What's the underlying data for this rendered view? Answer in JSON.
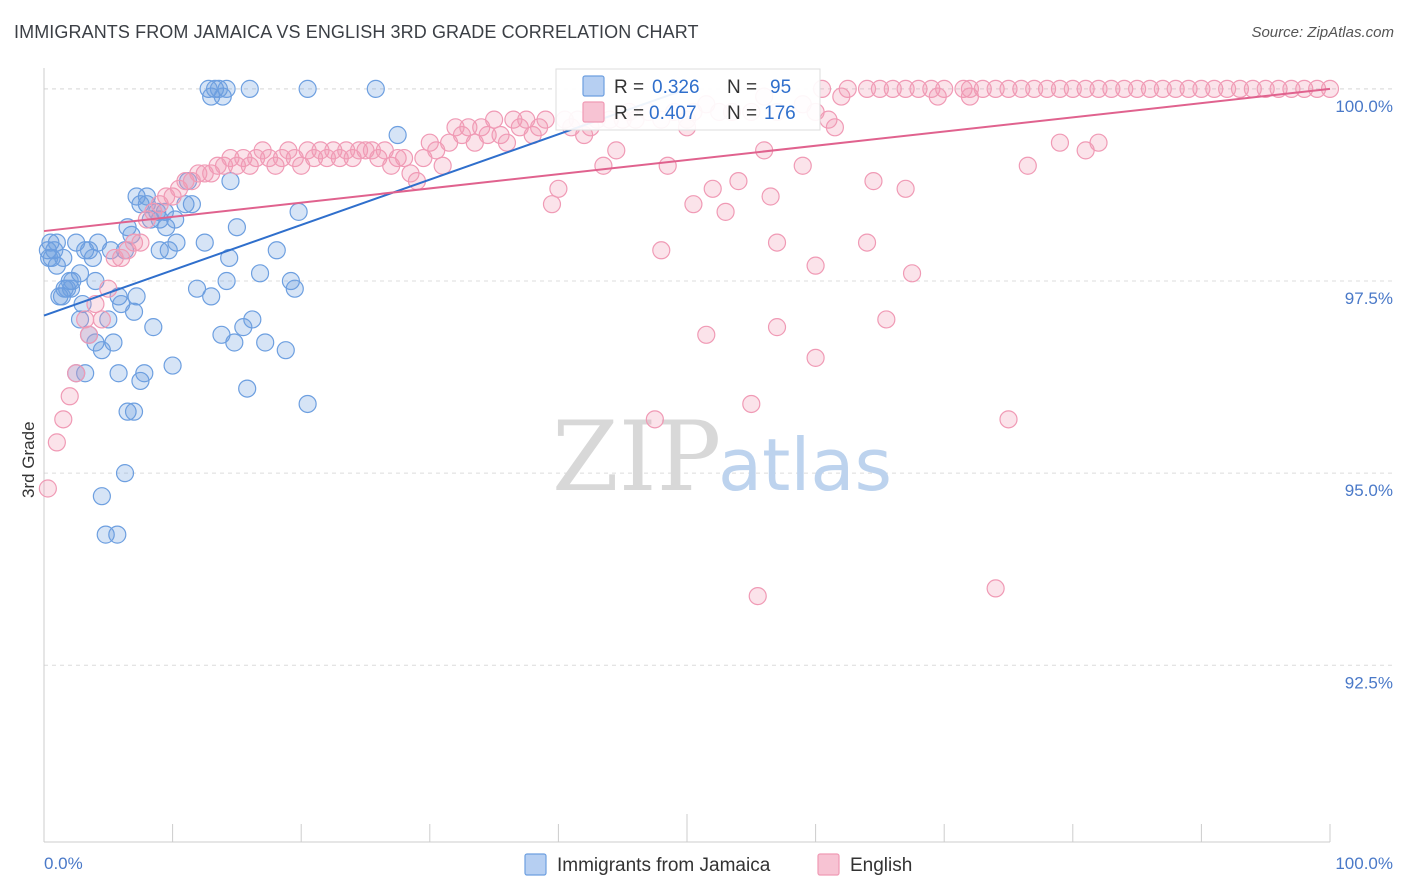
{
  "title": "IMMIGRANTS FROM JAMAICA VS ENGLISH 3RD GRADE CORRELATION CHART",
  "source": "Source: ZipAtlas.com",
  "watermark": {
    "zip": "ZIP",
    "atlas": "atlas"
  },
  "legend_box": {
    "rows": [
      {
        "r_label": "R =",
        "r_value": "0.326",
        "n_label": "N =",
        "n_value": "95"
      },
      {
        "r_label": "R =",
        "r_value": "0.407",
        "n_label": "N =",
        "n_value": "176"
      }
    ]
  },
  "chart_data": {
    "type": "scatter",
    "title": "IMMIGRANTS FROM JAMAICA VS ENGLISH 3RD GRADE CORRELATION CHART",
    "xlabel": "",
    "ylabel": "3rd Grade",
    "xlim": [
      0,
      100
    ],
    "ylim": [
      90.2,
      100.35
    ],
    "x_tick_labels": [
      "0.0%",
      "100.0%"
    ],
    "y_ticks": [
      92.5,
      95.0,
      97.5,
      100.0
    ],
    "y_tick_labels": [
      "92.5%",
      "95.0%",
      "97.5%",
      "100.0%"
    ],
    "grid": true,
    "legend_placement": "bottom-center",
    "series": [
      {
        "name": "Immigrants from Jamaica",
        "color": "#6d9fe0",
        "line_color": "#2f6fcc",
        "R": 0.326,
        "N": 95,
        "trend": {
          "x": [
            0,
            50
          ],
          "y": [
            97.05,
            100.0
          ]
        },
        "points": [
          [
            0.3,
            97.9
          ],
          [
            0.5,
            98.0
          ],
          [
            0.6,
            97.8
          ],
          [
            0.8,
            97.9
          ],
          [
            1.0,
            97.7
          ],
          [
            1.2,
            97.3
          ],
          [
            1.4,
            97.3
          ],
          [
            1.6,
            97.4
          ],
          [
            1.8,
            97.4
          ],
          [
            2.0,
            97.5
          ],
          [
            2.2,
            97.5
          ],
          [
            2.5,
            98.0
          ],
          [
            2.8,
            97.6
          ],
          [
            3.0,
            97.2
          ],
          [
            3.2,
            97.9
          ],
          [
            3.5,
            97.9
          ],
          [
            3.8,
            97.8
          ],
          [
            4.0,
            97.5
          ],
          [
            4.2,
            98.0
          ],
          [
            2.5,
            96.3
          ],
          [
            3.2,
            96.3
          ],
          [
            2.8,
            97.0
          ],
          [
            3.5,
            96.8
          ],
          [
            4.0,
            96.7
          ],
          [
            4.5,
            96.6
          ],
          [
            5.0,
            97.0
          ],
          [
            5.4,
            96.7
          ],
          [
            5.8,
            97.3
          ],
          [
            6.0,
            97.2
          ],
          [
            7.0,
            97.1
          ],
          [
            7.2,
            97.3
          ],
          [
            7.5,
            96.2
          ],
          [
            7.8,
            96.3
          ],
          [
            6.5,
            95.8
          ],
          [
            7.0,
            95.8
          ],
          [
            6.3,
            95.0
          ],
          [
            4.5,
            94.7
          ],
          [
            4.8,
            94.2
          ],
          [
            5.7,
            94.2
          ],
          [
            5.8,
            96.3
          ],
          [
            8.5,
            96.9
          ],
          [
            10.0,
            96.4
          ],
          [
            6.3,
            97.9
          ],
          [
            6.5,
            98.2
          ],
          [
            7.5,
            98.5
          ],
          [
            8.0,
            98.5
          ],
          [
            8.3,
            98.3
          ],
          [
            8.8,
            98.4
          ],
          [
            9.0,
            98.3
          ],
          [
            9.5,
            98.2
          ],
          [
            9.0,
            97.9
          ],
          [
            10.3,
            98.0
          ],
          [
            11.0,
            98.5
          ],
          [
            11.2,
            98.8
          ],
          [
            12.5,
            98.0
          ],
          [
            13.0,
            97.3
          ],
          [
            13.8,
            96.8
          ],
          [
            14.2,
            97.5
          ],
          [
            14.5,
            98.8
          ],
          [
            14.8,
            96.7
          ],
          [
            15.0,
            98.2
          ],
          [
            15.5,
            96.9
          ],
          [
            15.8,
            96.1
          ],
          [
            16.2,
            97.0
          ],
          [
            16.8,
            97.6
          ],
          [
            17.2,
            96.7
          ],
          [
            18.8,
            96.6
          ],
          [
            19.2,
            97.5
          ],
          [
            19.5,
            97.4
          ],
          [
            19.8,
            98.4
          ],
          [
            20.5,
            95.9
          ],
          [
            7.2,
            98.6
          ],
          [
            8.0,
            98.6
          ],
          [
            9.4,
            98.4
          ],
          [
            10.2,
            98.3
          ],
          [
            11.5,
            98.5
          ],
          [
            12.8,
            100.0
          ],
          [
            13.0,
            99.9
          ],
          [
            13.3,
            100.0
          ],
          [
            13.6,
            100.0
          ],
          [
            13.9,
            99.9
          ],
          [
            14.2,
            100.0
          ],
          [
            16.0,
            100.0
          ],
          [
            20.5,
            100.0
          ],
          [
            25.8,
            100.0
          ],
          [
            27.5,
            99.4
          ],
          [
            1.0,
            98.0
          ],
          [
            1.5,
            97.8
          ],
          [
            0.4,
            97.8
          ],
          [
            2.1,
            97.4
          ],
          [
            5.2,
            97.9
          ],
          [
            6.8,
            98.1
          ],
          [
            9.7,
            97.9
          ],
          [
            11.9,
            97.4
          ],
          [
            14.4,
            97.8
          ],
          [
            18.1,
            97.9
          ]
        ]
      },
      {
        "name": "English",
        "color": "#f09ab5",
        "line_color": "#e0628e",
        "R": 0.407,
        "N": 176,
        "trend": {
          "x": [
            0,
            100
          ],
          "y": [
            98.15,
            100.0
          ]
        },
        "points": [
          [
            0.3,
            94.8
          ],
          [
            1.0,
            95.4
          ],
          [
            1.5,
            95.7
          ],
          [
            2.0,
            96.0
          ],
          [
            2.5,
            96.3
          ],
          [
            3.2,
            97.0
          ],
          [
            3.5,
            96.8
          ],
          [
            4.0,
            97.2
          ],
          [
            4.5,
            97.0
          ],
          [
            5.0,
            97.4
          ],
          [
            5.5,
            97.8
          ],
          [
            6.0,
            97.8
          ],
          [
            6.5,
            97.9
          ],
          [
            7.0,
            98.0
          ],
          [
            7.5,
            98.0
          ],
          [
            8.0,
            98.3
          ],
          [
            8.5,
            98.4
          ],
          [
            9.0,
            98.5
          ],
          [
            9.5,
            98.6
          ],
          [
            10.0,
            98.6
          ],
          [
            10.5,
            98.7
          ],
          [
            11.0,
            98.8
          ],
          [
            11.5,
            98.8
          ],
          [
            12.0,
            98.9
          ],
          [
            12.5,
            98.9
          ],
          [
            13.0,
            98.9
          ],
          [
            13.5,
            99.0
          ],
          [
            14.0,
            99.0
          ],
          [
            14.5,
            99.1
          ],
          [
            15.0,
            99.0
          ],
          [
            15.5,
            99.1
          ],
          [
            16.0,
            99.0
          ],
          [
            16.5,
            99.1
          ],
          [
            17.0,
            99.2
          ],
          [
            17.5,
            99.1
          ],
          [
            18.0,
            99.0
          ],
          [
            18.5,
            99.1
          ],
          [
            19.0,
            99.2
          ],
          [
            19.5,
            99.1
          ],
          [
            20.0,
            99.0
          ],
          [
            20.5,
            99.2
          ],
          [
            21.0,
            99.1
          ],
          [
            21.5,
            99.2
          ],
          [
            22.0,
            99.1
          ],
          [
            22.5,
            99.2
          ],
          [
            23.0,
            99.1
          ],
          [
            23.5,
            99.2
          ],
          [
            24.0,
            99.1
          ],
          [
            24.5,
            99.2
          ],
          [
            25.0,
            99.2
          ],
          [
            25.5,
            99.2
          ],
          [
            26.0,
            99.1
          ],
          [
            26.5,
            99.2
          ],
          [
            27.0,
            99.0
          ],
          [
            27.5,
            99.1
          ],
          [
            28.0,
            99.1
          ],
          [
            28.5,
            98.9
          ],
          [
            29.0,
            98.8
          ],
          [
            29.5,
            99.1
          ],
          [
            30.0,
            99.3
          ],
          [
            30.5,
            99.2
          ],
          [
            31.0,
            99.0
          ],
          [
            31.5,
            99.3
          ],
          [
            32.0,
            99.5
          ],
          [
            32.5,
            99.4
          ],
          [
            33.0,
            99.5
          ],
          [
            33.5,
            99.3
          ],
          [
            34.0,
            99.5
          ],
          [
            34.5,
            99.4
          ],
          [
            35.0,
            99.6
          ],
          [
            35.5,
            99.4
          ],
          [
            36.0,
            99.3
          ],
          [
            36.5,
            99.6
          ],
          [
            37.0,
            99.5
          ],
          [
            37.5,
            99.6
          ],
          [
            38.0,
            99.4
          ],
          [
            38.5,
            99.5
          ],
          [
            39.0,
            99.6
          ],
          [
            39.5,
            98.5
          ],
          [
            40.0,
            98.7
          ],
          [
            40.5,
            99.6
          ],
          [
            41.0,
            99.5
          ],
          [
            41.5,
            99.6
          ],
          [
            42.0,
            99.4
          ],
          [
            42.5,
            99.5
          ],
          [
            43.0,
            99.6
          ],
          [
            43.5,
            99.0
          ],
          [
            44.0,
            99.6
          ],
          [
            44.5,
            99.2
          ],
          [
            45.0,
            99.6
          ],
          [
            45.5,
            99.7
          ],
          [
            46.0,
            99.6
          ],
          [
            47.0,
            99.7
          ],
          [
            48.0,
            99.6
          ],
          [
            49.0,
            99.7
          ],
          [
            50.0,
            99.6
          ],
          [
            50.5,
            99.7
          ],
          [
            51.5,
            99.8
          ],
          [
            52.5,
            99.7
          ],
          [
            53.5,
            99.7
          ],
          [
            55.0,
            99.7
          ],
          [
            56.0,
            99.9
          ],
          [
            57.0,
            99.7
          ],
          [
            59.0,
            99.8
          ],
          [
            60.0,
            99.7
          ],
          [
            61.0,
            99.6
          ],
          [
            62.0,
            99.9
          ],
          [
            64.0,
            100.0
          ],
          [
            66.0,
            100.0
          ],
          [
            68.0,
            100.0
          ],
          [
            70.0,
            100.0
          ],
          [
            72.0,
            100.0
          ],
          [
            74.0,
            100.0
          ],
          [
            76.0,
            100.0
          ],
          [
            78.0,
            100.0
          ],
          [
            80.0,
            100.0
          ],
          [
            82.0,
            100.0
          ],
          [
            84.0,
            100.0
          ],
          [
            86.0,
            100.0
          ],
          [
            88.0,
            100.0
          ],
          [
            90.0,
            100.0
          ],
          [
            92.0,
            100.0
          ],
          [
            94.0,
            100.0
          ],
          [
            96.0,
            100.0
          ],
          [
            98.0,
            100.0
          ],
          [
            100.0,
            100.0
          ],
          [
            60.5,
            100.0
          ],
          [
            62.5,
            100.0
          ],
          [
            65.0,
            100.0
          ],
          [
            67.0,
            100.0
          ],
          [
            69.0,
            100.0
          ],
          [
            71.5,
            100.0
          ],
          [
            73.0,
            100.0
          ],
          [
            75.0,
            100.0
          ],
          [
            77.0,
            100.0
          ],
          [
            79.0,
            100.0
          ],
          [
            81.0,
            100.0
          ],
          [
            83.0,
            100.0
          ],
          [
            85.0,
            100.0
          ],
          [
            87.0,
            100.0
          ],
          [
            89.0,
            100.0
          ],
          [
            91.0,
            100.0
          ],
          [
            93.0,
            100.0
          ],
          [
            95.0,
            100.0
          ],
          [
            97.0,
            100.0
          ],
          [
            99.0,
            100.0
          ],
          [
            48.5,
            99.0
          ],
          [
            50.0,
            99.5
          ],
          [
            52.0,
            98.7
          ],
          [
            54.0,
            98.8
          ],
          [
            56.0,
            99.2
          ],
          [
            59.0,
            99.0
          ],
          [
            61.5,
            99.5
          ],
          [
            64.5,
            98.8
          ],
          [
            67.0,
            98.7
          ],
          [
            69.5,
            99.9
          ],
          [
            72.0,
            99.9
          ],
          [
            76.5,
            99.0
          ],
          [
            79.0,
            99.3
          ],
          [
            81.0,
            99.2
          ],
          [
            82.0,
            99.3
          ],
          [
            50.5,
            98.5
          ],
          [
            53.0,
            98.4
          ],
          [
            56.5,
            98.6
          ],
          [
            60.0,
            97.7
          ],
          [
            64.0,
            98.0
          ],
          [
            67.5,
            97.6
          ],
          [
            48.0,
            97.9
          ],
          [
            57.0,
            98.0
          ],
          [
            51.5,
            96.8
          ],
          [
            57.0,
            96.9
          ],
          [
            60.0,
            96.5
          ],
          [
            65.5,
            97.0
          ],
          [
            47.5,
            95.7
          ],
          [
            55.0,
            95.9
          ],
          [
            75.0,
            95.7
          ],
          [
            55.5,
            93.4
          ],
          [
            74.0,
            93.5
          ]
        ]
      }
    ]
  },
  "bottom_legend": [
    {
      "label": "Immigrants from Jamaica"
    },
    {
      "label": "English"
    }
  ]
}
